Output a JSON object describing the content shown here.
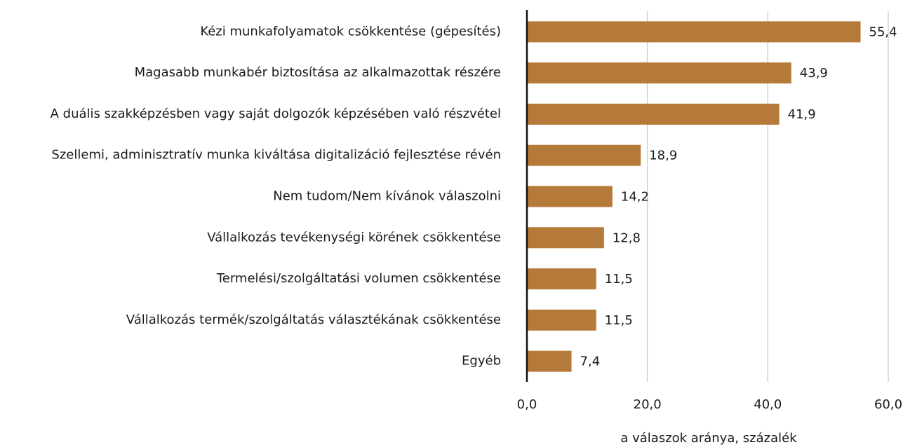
{
  "chart_data": {
    "type": "hbar",
    "xlabel": "a válaszok aránya, százalék",
    "categories": [
      "Kézi munkafolyamatok csökkentése (gépesítés)",
      "Magasabb munkabér biztosítása az alkalmazottak részére",
      "A duális szakképzésben vagy saját dolgozók képzésében való részvétel",
      "Szellemi, adminisztratív munka kiváltása digitalizáció fejlesztése révén",
      "Nem tudom/Nem kívánok válaszolni",
      "Vállalkozás tevékenységi körének csökkentése",
      "Termelési/szolgáltatási volumen csökkentése",
      "Vállalkozás termék/szolgáltatás választékának csökkentése",
      "Egyéb"
    ],
    "values": [
      55.4,
      43.9,
      41.9,
      18.9,
      14.2,
      12.8,
      11.5,
      11.5,
      7.4
    ],
    "value_labels": [
      "55,4",
      "43,9",
      "41,9",
      "18,9",
      "14,2",
      "12,8",
      "11,5",
      "11,5",
      "7,4"
    ],
    "color": "#b57a3a",
    "xlim": [
      0,
      60
    ],
    "xticks": [
      {
        "value": 0,
        "label": "0,0"
      },
      {
        "value": 20,
        "label": "20,0"
      },
      {
        "value": 40,
        "label": "40,0"
      },
      {
        "value": 60,
        "label": "60,0"
      }
    ],
    "grid": true
  }
}
